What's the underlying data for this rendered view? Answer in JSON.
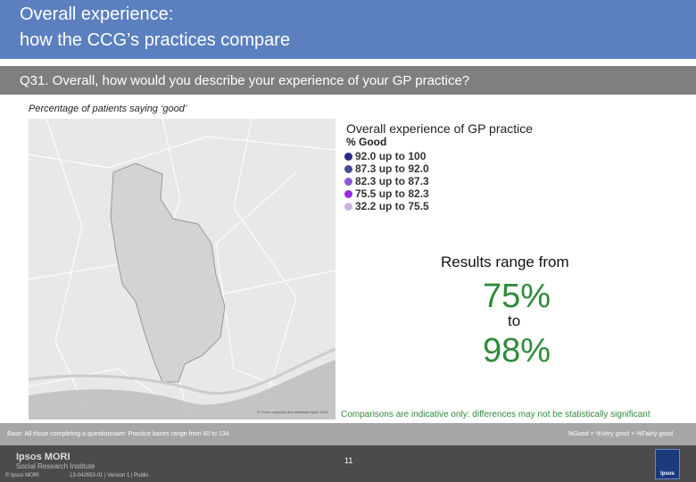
{
  "header": {
    "title_line1": "Overall experience:",
    "title_line2": "how the CCG’s practices compare",
    "question": "Q31. Overall, how would you describe your experience of your GP practice?"
  },
  "subtitle": "Percentage of patients saying ‘good’",
  "legend": {
    "title": "Overall experience of GP practice",
    "subtitle": "% Good",
    "items": [
      {
        "label": "92.0 up to 100",
        "color": "#2a2a8a"
      },
      {
        "label": "87.3 up to 92.0",
        "color": "#4a4a9a"
      },
      {
        "label": "82.3 up to 87.3",
        "color": "#8a5ad8"
      },
      {
        "label": "75.5 up to 82.3",
        "color": "#9a2ae0"
      },
      {
        "label": "32.2 up to 75.5",
        "color": "#c8b4e0"
      }
    ]
  },
  "results": {
    "label": "Results range from",
    "low": "75%",
    "to": "to",
    "high": "98%"
  },
  "caveat": "Comparisons are indicative only: differences may not be statistically significant",
  "map_credit": "© Crown copyright and database rights 2014",
  "base": {
    "left": "Base: All those completing a questionnaire: Practice bases range from 60 to 134",
    "right": "%Good = %Very good + %Fairly good"
  },
  "footer": {
    "org_name": "Ipsos MORI",
    "org_sub": "Social Research Institute",
    "copyright": "© Ipsos MORI",
    "job_ref": "13-042653-01 | Version 1 | Public",
    "page_number": "11",
    "logo_text": "Ipsos"
  }
}
